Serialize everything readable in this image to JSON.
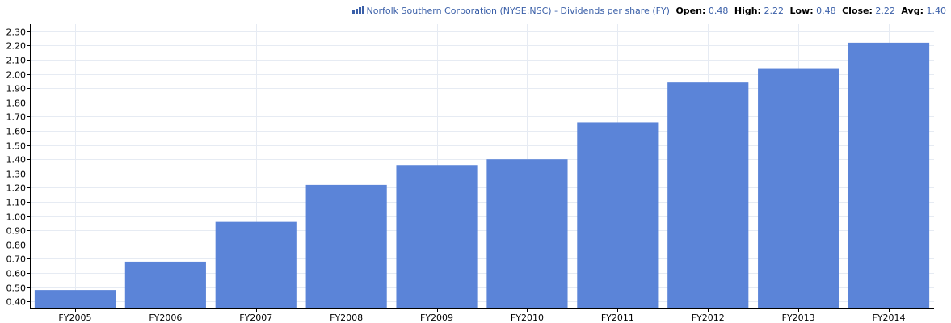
{
  "legend": {
    "series_label": "Norfolk Southern Corporation (NYSE:NSC) - Dividends per share (FY)",
    "stats": [
      {
        "key": "Open:",
        "value": "0.48"
      },
      {
        "key": "High:",
        "value": "2.22"
      },
      {
        "key": "Low:",
        "value": "0.48"
      },
      {
        "key": "Close:",
        "value": "2.22"
      },
      {
        "key": "Avg:",
        "value": "1.40"
      }
    ]
  },
  "colors": {
    "bar": "#5b84d8",
    "grid": "#e6ebf3",
    "axis": "#000000",
    "legend_text": "#3a5fa8"
  },
  "chart_data": {
    "type": "bar",
    "categories": [
      "FY2005",
      "FY2006",
      "FY2007",
      "FY2008",
      "FY2009",
      "FY2010",
      "FY2011",
      "FY2012",
      "FY2013",
      "FY2014"
    ],
    "values": [
      0.48,
      0.68,
      0.96,
      1.22,
      1.36,
      1.4,
      1.66,
      1.94,
      2.04,
      2.22
    ],
    "ylim": [
      0.35,
      2.35
    ],
    "yticks": [
      "0.40",
      "0.50",
      "0.60",
      "0.70",
      "0.80",
      "0.90",
      "1.00",
      "1.10",
      "1.20",
      "1.30",
      "1.40",
      "1.50",
      "1.60",
      "1.70",
      "1.80",
      "1.90",
      "2.00",
      "2.10",
      "2.20",
      "2.30"
    ],
    "grid": true,
    "legend_position": "top-right"
  }
}
